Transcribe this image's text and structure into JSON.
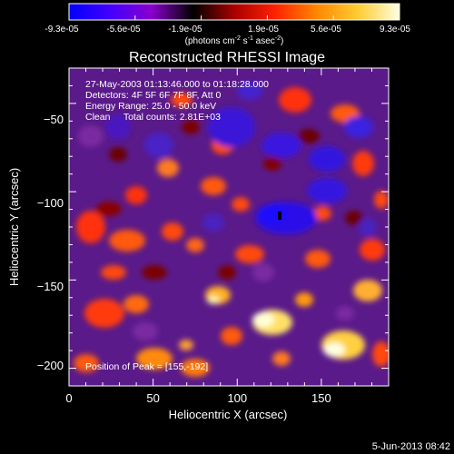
{
  "colorbar": {
    "ticks": [
      "-9.3e-05",
      "-5.6e-05",
      "-1.9e-05",
      "1.9e-05",
      "5.6e-05",
      "9.3e-05"
    ],
    "unit_base": "(photons cm",
    "unit_exp1": "-2",
    "unit_mid": " s",
    "unit_exp2": "-1",
    "unit_mid2": " asec",
    "unit_exp3": "-2",
    "unit_end": ")",
    "range": [
      -9.3e-05,
      9.3e-05
    ],
    "stops": [
      "#0000ff",
      "#4400ff",
      "#8800cc",
      "#000000",
      "#aa0000",
      "#ff2200",
      "#ff8800",
      "#ffcc33",
      "#ffffe0"
    ]
  },
  "chart_data": {
    "type": "heatmap",
    "title": "Reconstructed RHESSI Image",
    "xlabel": "Heliocentric X (arcsec)",
    "ylabel": "Heliocentric Y (arcsec)",
    "xlim": [
      0,
      190
    ],
    "ylim": [
      -210,
      -30
    ],
    "x_ticks": [
      0,
      50,
      100,
      150
    ],
    "y_ticks": [
      -200,
      -150,
      -100,
      -50
    ],
    "x_tick_labels": [
      "0",
      "50",
      "100",
      "150"
    ],
    "y_tick_labels": [
      "−200",
      "−150",
      "−100",
      "−50"
    ],
    "peak": [
      155,
      -192
    ],
    "annotations": [
      "27-May-2003 01:13:46.000 to 01:18:28.000",
      "Detectors: 4F 5F 6F 7F 8F, Att 0",
      "Energy Range: 25.0 - 50.0 keV",
      "Clean     Total counts: 2.81E+03"
    ],
    "peak_label": "Position of Peak = [155,-192]"
  },
  "footer": {
    "date": "5-Jun-2013 08:42"
  }
}
